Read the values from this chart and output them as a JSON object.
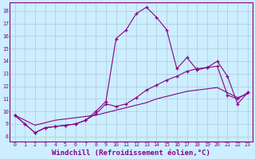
{
  "background_color": "#cceeff",
  "grid_color": "#b0c8d8",
  "line_color": "#880088",
  "xlabel": "Windchill (Refroidissement éolien,°C)",
  "xlabel_fontsize": 6.5,
  "ylabel_values": [
    8,
    9,
    10,
    11,
    12,
    13,
    14,
    15,
    16,
    17,
    18
  ],
  "xlim": [
    -0.5,
    23.5
  ],
  "ylim": [
    7.6,
    18.7
  ],
  "xtick_labels": [
    "0",
    "1",
    "2",
    "3",
    "4",
    "5",
    "6",
    "7",
    "8",
    "9",
    "10",
    "11",
    "12",
    "13",
    "14",
    "15",
    "16",
    "17",
    "18",
    "19",
    "20",
    "21",
    "22",
    "23"
  ],
  "series1_x": [
    0,
    1,
    2,
    3,
    4,
    5,
    6,
    7,
    8,
    9,
    10,
    11,
    12,
    13,
    14,
    15,
    16,
    17,
    18,
    19,
    20,
    21,
    22,
    23
  ],
  "series1_y": [
    9.7,
    9.0,
    8.3,
    8.7,
    8.8,
    8.9,
    9.0,
    9.3,
    10.0,
    10.8,
    15.8,
    16.5,
    17.8,
    18.3,
    17.5,
    16.5,
    13.4,
    14.3,
    13.3,
    13.5,
    14.0,
    12.8,
    10.6,
    11.5
  ],
  "series2_x": [
    0,
    1,
    2,
    3,
    4,
    5,
    6,
    7,
    8,
    9,
    10,
    11,
    12,
    13,
    14,
    15,
    16,
    17,
    18,
    19,
    20,
    21,
    22,
    23
  ],
  "series2_y": [
    9.7,
    9.0,
    8.3,
    8.7,
    8.8,
    8.9,
    9.0,
    9.3,
    9.8,
    10.6,
    10.4,
    10.6,
    11.1,
    11.7,
    12.1,
    12.5,
    12.8,
    13.2,
    13.4,
    13.5,
    13.6,
    11.3,
    11.0,
    11.5
  ],
  "series3_x": [
    0,
    1,
    2,
    3,
    4,
    5,
    6,
    7,
    8,
    9,
    10,
    11,
    12,
    13,
    14,
    15,
    16,
    17,
    18,
    19,
    20,
    21,
    22,
    23
  ],
  "series3_y": [
    9.7,
    9.3,
    8.9,
    9.1,
    9.3,
    9.4,
    9.5,
    9.6,
    9.7,
    9.9,
    10.1,
    10.3,
    10.5,
    10.7,
    11.0,
    11.2,
    11.4,
    11.6,
    11.7,
    11.8,
    11.9,
    11.5,
    11.1,
    11.4
  ]
}
